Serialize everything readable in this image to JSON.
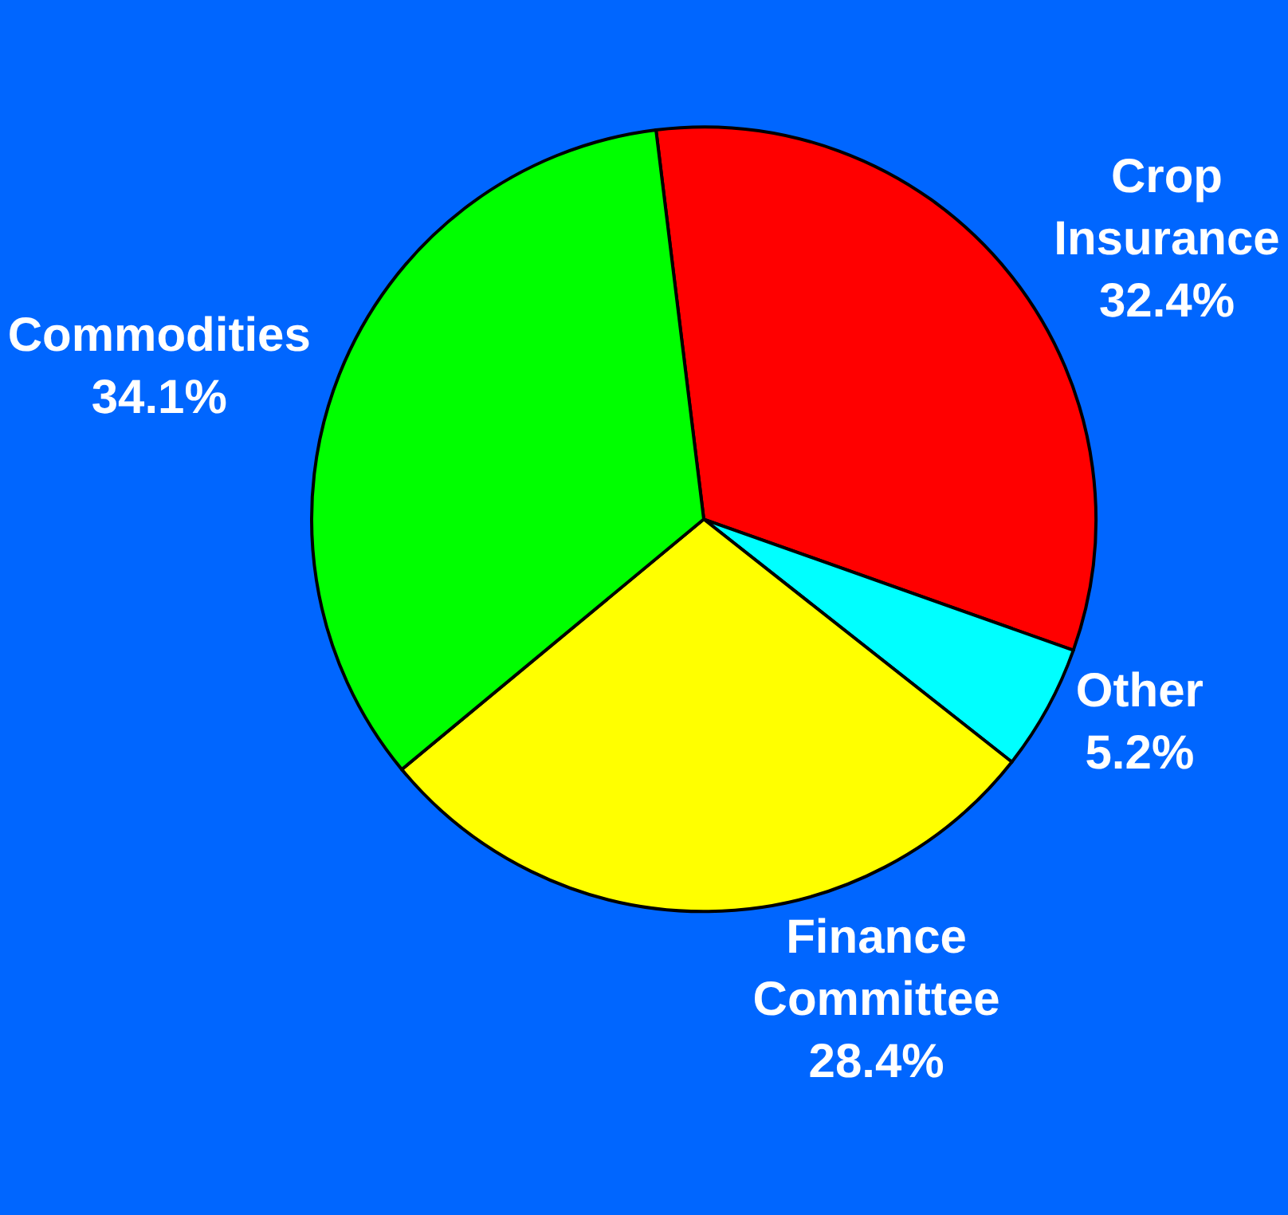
{
  "chart_data": {
    "type": "pie",
    "categories": [
      "Crop Insurance",
      "Other",
      "Finance Committee",
      "Commodities"
    ],
    "values": [
      32.4,
      5.2,
      28.4,
      34.1
    ],
    "value_labels": [
      "32.4%",
      "5.2%",
      "28.4%",
      "34.1%"
    ],
    "colors": [
      "#ff0000",
      "#00ffff",
      "#ffff00",
      "#00ff00"
    ],
    "legend": false
  }
}
